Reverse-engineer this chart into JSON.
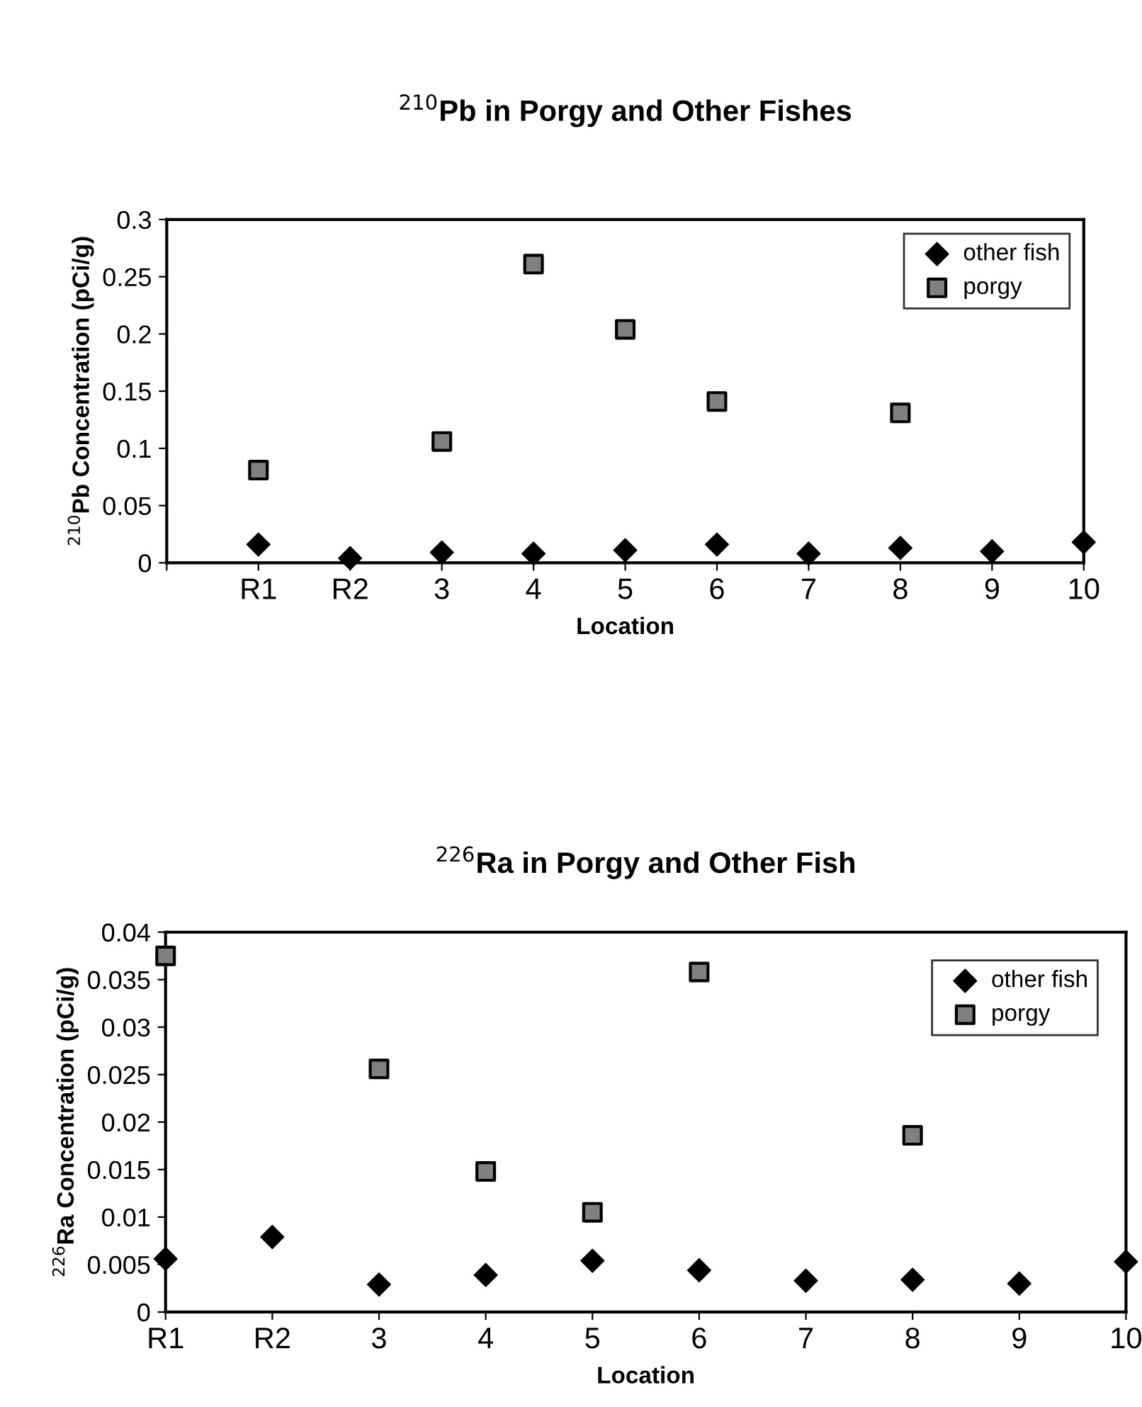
{
  "chart_data": [
    {
      "type": "scatter",
      "title": "$^{210}$Pb in Porgy and Other Fishes",
      "xlabel": "Location",
      "ylabel": "$^{210}$Pb Concentration (pCi/g)",
      "x": [
        1,
        2,
        3,
        4,
        5,
        6,
        7,
        8,
        9,
        10
      ],
      "xlim": [
        0,
        10
      ],
      "xticks": [
        {
          "value": 0,
          "label": null
        },
        {
          "value": 1,
          "label": "R1"
        },
        {
          "value": 2,
          "label": "R2"
        },
        3,
        4,
        5,
        6,
        7,
        8,
        9,
        10
      ],
      "ylim": [
        0,
        0.3
      ],
      "yticks": [
        0,
        0.05,
        0.1,
        0.15,
        0.2,
        0.25,
        0.3
      ],
      "grid": false,
      "legend": "top right",
      "series": [
        {
          "name": "other fish",
          "color": "#000000",
          "marker": "diamond",
          "values": [
            0.016,
            0.004,
            0.009,
            0.008,
            0.011,
            0.016,
            0.008,
            0.013,
            0.01,
            0.018
          ]
        },
        {
          "name": "porgy",
          "color": "#808080",
          "marker": "square",
          "values": [
            0.081,
            null,
            0.106,
            0.261,
            0.204,
            0.141,
            null,
            0.131,
            null,
            null
          ]
        }
      ]
    },
    {
      "type": "scatter",
      "title": "$^{226}$Ra in Porgy and Other Fish",
      "xlabel": "Location",
      "ylabel": "$^{226}$Ra Concentration (pCi/g)",
      "x": [
        1,
        2,
        3,
        4,
        5,
        6,
        7,
        8,
        9,
        10
      ],
      "xlim": [
        1,
        10
      ],
      "xticks": [
        {
          "value": 1,
          "label": "R1"
        },
        {
          "value": 2,
          "label": "R2"
        },
        3,
        4,
        5,
        6,
        7,
        8,
        9,
        10
      ],
      "ylim": [
        0,
        0.04
      ],
      "yticks": [
        0,
        0.005,
        0.01,
        0.015,
        0.02,
        0.025,
        0.03,
        0.035,
        0.04
      ],
      "grid": false,
      "legend": "top right",
      "series": [
        {
          "name": "other fish",
          "color": "#000000",
          "marker": "diamond",
          "values": [
            0.0056,
            0.0079,
            0.0029,
            0.0039,
            0.0054,
            0.0044,
            0.0033,
            0.0034,
            0.003,
            0.0053
          ]
        },
        {
          "name": "porgy",
          "color": "#808080",
          "marker": "square",
          "values": [
            0.0375,
            null,
            0.0256,
            0.0148,
            0.0105,
            0.0358,
            null,
            0.0186,
            null,
            null
          ]
        }
      ]
    }
  ]
}
